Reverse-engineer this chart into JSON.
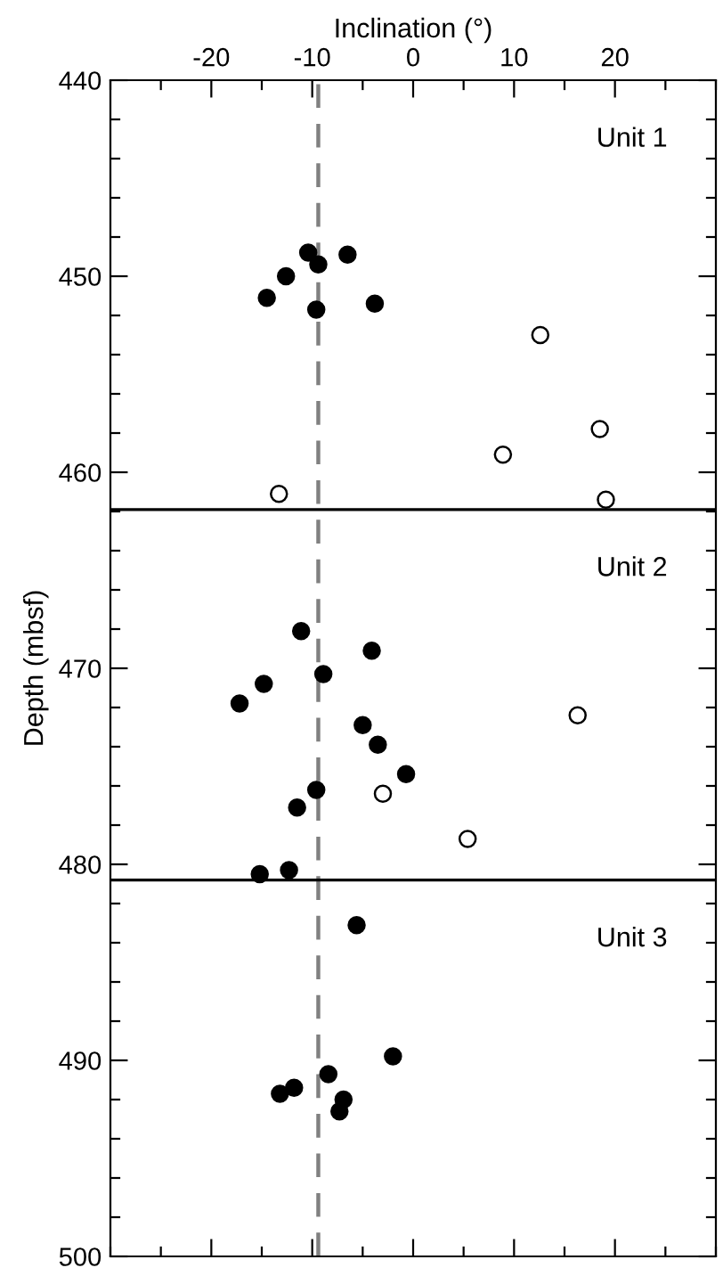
{
  "chart_data": {
    "type": "scatter",
    "xlabel": "Inclination (°)",
    "ylabel": "Depth (mbsf)",
    "xlim": [
      -30,
      30
    ],
    "ylim": [
      500,
      440
    ],
    "xticks": [
      {
        "value": -30,
        "label": null
      },
      {
        "value": -25,
        "label": null
      },
      -20,
      {
        "value": -15,
        "label": null
      },
      -10,
      {
        "value": -5,
        "label": null
      },
      0,
      {
        "value": 5,
        "label": null
      },
      10,
      {
        "value": 15,
        "label": null
      },
      20,
      {
        "value": 25,
        "label": null
      },
      {
        "value": 30,
        "label": null
      }
    ],
    "yticks": [
      440,
      {
        "value": 442,
        "label": null
      },
      {
        "value": 444,
        "label": null
      },
      {
        "value": 446,
        "label": null
      },
      {
        "value": 448,
        "label": null
      },
      450,
      {
        "value": 452,
        "label": null
      },
      {
        "value": 454,
        "label": null
      },
      {
        "value": 456,
        "label": null
      },
      {
        "value": 458,
        "label": null
      },
      460,
      {
        "value": 462,
        "label": null
      },
      {
        "value": 464,
        "label": null
      },
      {
        "value": 466,
        "label": null
      },
      {
        "value": 468,
        "label": null
      },
      470,
      {
        "value": 472,
        "label": null
      },
      {
        "value": 474,
        "label": null
      },
      {
        "value": 476,
        "label": null
      },
      {
        "value": 478,
        "label": null
      },
      480,
      {
        "value": 482,
        "label": null
      },
      {
        "value": 484,
        "label": null
      },
      {
        "value": 486,
        "label": null
      },
      {
        "value": 488,
        "label": null
      },
      490,
      {
        "value": 492,
        "label": null
      },
      {
        "value": 494,
        "label": null
      },
      {
        "value": 496,
        "label": null
      },
      {
        "value": 498,
        "label": null
      },
      500
    ],
    "marker": "circle",
    "grid": false,
    "legend": false,
    "series": [
      {
        "color": "#000000",
        "x": [
          -10.4,
          -6.5,
          -9.4,
          -12.6,
          -14.5,
          -9.6,
          -3.8,
          -11.1,
          -4.1,
          -8.9,
          -14.8,
          -17.2,
          -5.0,
          -3.5,
          -0.7,
          -9.6,
          -11.5,
          -15.2,
          -12.3,
          -5.6,
          -2.0,
          -8.4,
          -11.8,
          -13.2,
          -6.9,
          -7.3
        ],
        "values": [
          448.8,
          448.9,
          449.4,
          450.0,
          451.1,
          451.7,
          451.4,
          468.1,
          469.1,
          470.3,
          470.8,
          471.8,
          472.9,
          473.9,
          475.4,
          476.2,
          477.1,
          480.5,
          480.3,
          483.1,
          489.8,
          490.7,
          491.4,
          491.7,
          492.0,
          492.6
        ]
      },
      {
        "color": "#ffffff",
        "x": [
          12.6,
          18.5,
          8.9,
          -13.3,
          19.1,
          16.3,
          -3.0,
          5.4
        ],
        "values": [
          453.0,
          457.8,
          459.1,
          461.1,
          461.4,
          472.4,
          476.4,
          478.7
        ]
      }
    ],
    "ref_lines": [
      {
        "axis": "x",
        "value": -9.4,
        "color": "#808080",
        "line_style": "dashed"
      },
      {
        "axis": "y",
        "value": 461.9,
        "color": "#000000",
        "line_style": "solid"
      },
      {
        "axis": "y",
        "value": 480.8,
        "color": "#000000",
        "line_style": "solid"
      }
    ],
    "annotations": [
      "Unit 1",
      "Unit 2",
      "Unit 3"
    ]
  }
}
